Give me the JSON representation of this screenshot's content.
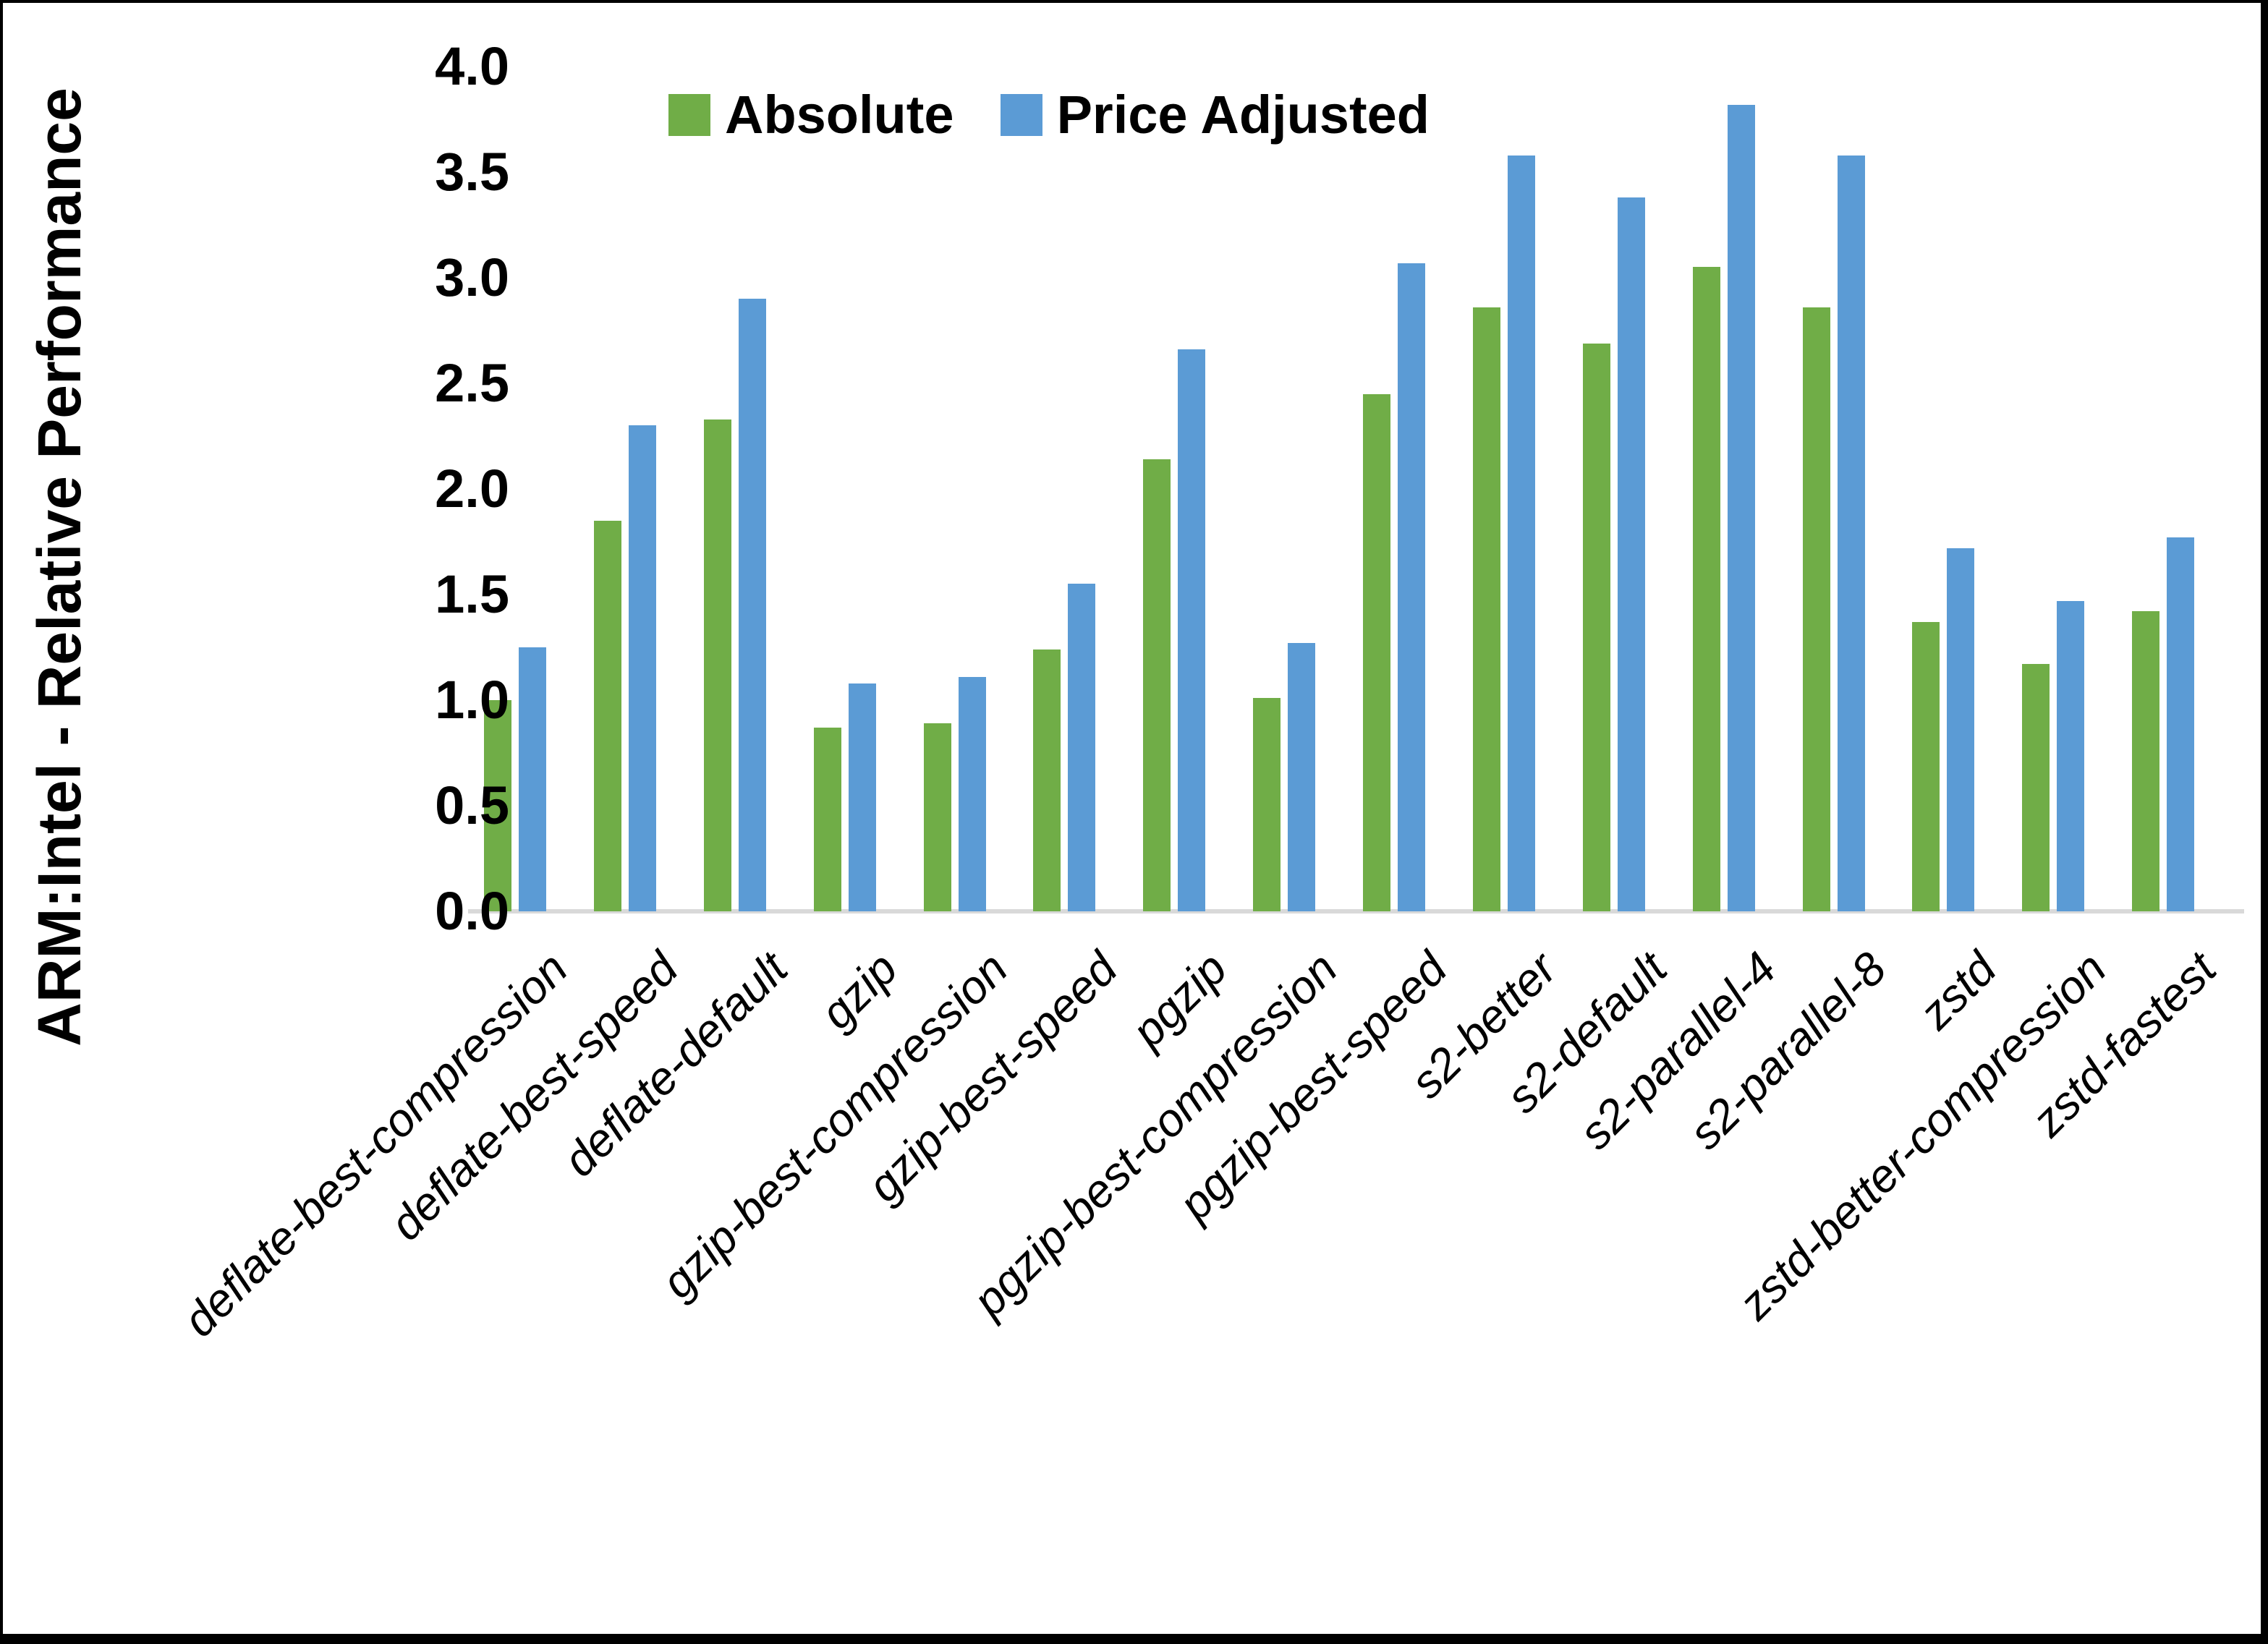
{
  "figure": {
    "background": "#ffffff",
    "frame_color": "#000000"
  },
  "chart_data": {
    "type": "bar",
    "title": "",
    "xlabel": "",
    "ylabel": "ARM:Intel - Relative Performance",
    "ylim": [
      0,
      4
    ],
    "ytick_step": 0.5,
    "yticks": [
      "0.0",
      "0.5",
      "1.0",
      "1.5",
      "2.0",
      "2.5",
      "3.0",
      "3.5",
      "4.0"
    ],
    "grid": false,
    "legend_position": "top-center",
    "axis_line_color": "#d9d9d9",
    "categories": [
      "deflate-best-compression",
      "deflate-best-speed",
      "deflate-default",
      "gzip",
      "gzip-best-compression",
      "gzip-best-speed",
      "pgzip",
      "pgzip-best-compression",
      "pgzip-best-speed",
      "s2-better",
      "s2-default",
      "s2-parallel-4",
      "s2-parallel-8",
      "zstd",
      "zstd-better-compression",
      "zstd-fastest"
    ],
    "series": [
      {
        "name": "Absolute",
        "color": "#70AD47",
        "values": [
          1.0,
          1.85,
          2.33,
          0.87,
          0.89,
          1.24,
          2.14,
          1.01,
          2.45,
          2.86,
          2.69,
          3.05,
          2.86,
          1.37,
          1.17,
          1.42
        ]
      },
      {
        "name": "Price Adjusted",
        "color": "#5B9BD5",
        "values": [
          1.25,
          2.3,
          2.9,
          1.08,
          1.11,
          1.55,
          2.66,
          1.27,
          3.07,
          3.58,
          3.38,
          3.82,
          3.58,
          1.72,
          1.47,
          1.77
        ]
      }
    ]
  }
}
